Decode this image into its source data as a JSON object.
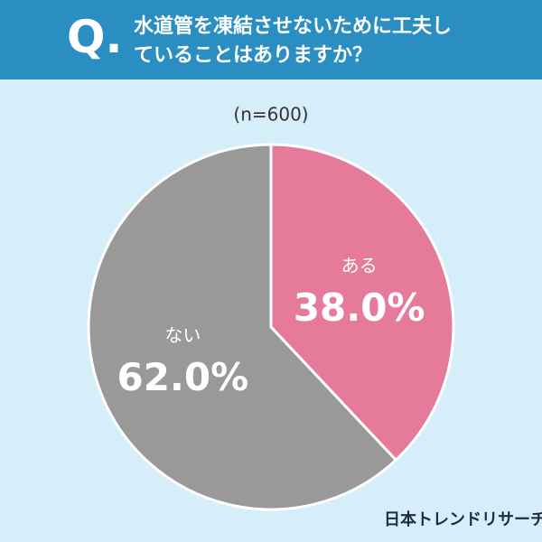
{
  "chart_data": {
    "type": "pie",
    "icon_text": "Q.",
    "title": "水道管を凍結させないために工夫していることはありますか？",
    "subtitle": "(n=600)",
    "categories": [
      "ある",
      "ない"
    ],
    "values": [
      38.0,
      62.0
    ],
    "value_labels": [
      "38.0%",
      "62.0%"
    ],
    "colors": [
      "#e57a9a",
      "#999999"
    ],
    "source": "日本トレンドリサーチ"
  }
}
